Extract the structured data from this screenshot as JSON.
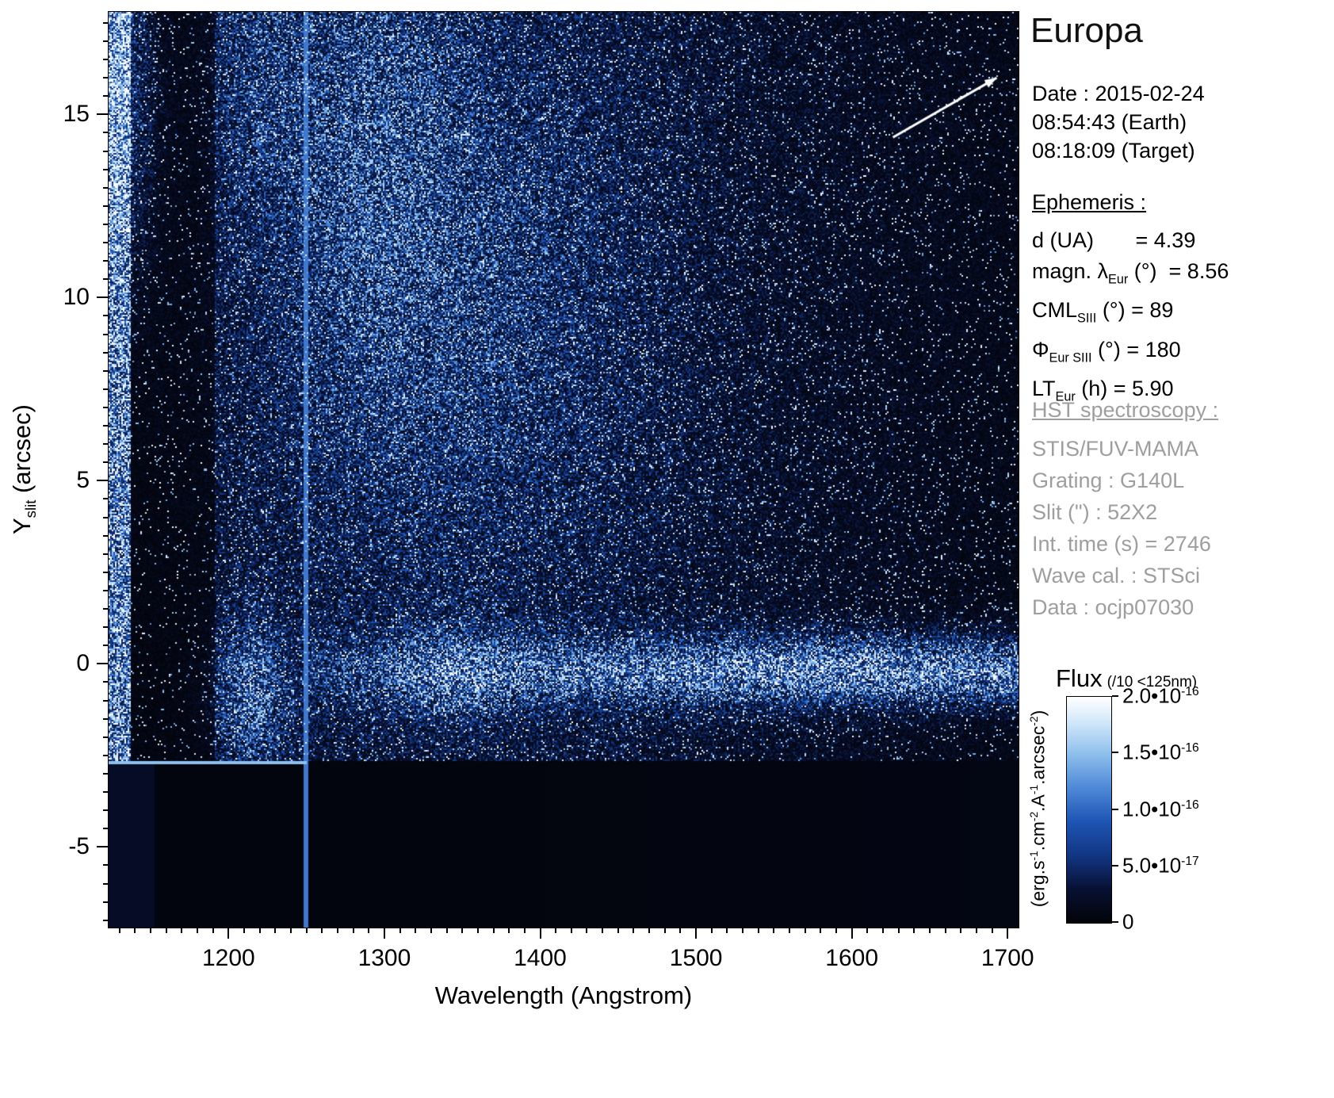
{
  "title": "Europa",
  "observation": {
    "date_label": "Date : 2015-02-24",
    "earth_time": "08:54:43 (Earth)",
    "target_time": "08:18:09 (Target)"
  },
  "ephemeris": {
    "heading": "Ephemeris :",
    "lines": [
      [
        {
          "t": "d (UA)       = 4.39"
        }
      ],
      [
        {
          "t": "magn. λ"
        },
        {
          "t": "Eur",
          "sub": true
        },
        {
          "t": " (°)  = 8.56"
        }
      ],
      [
        {
          "t": "CML"
        },
        {
          "t": "SIII",
          "sub": true
        },
        {
          "t": " (°) = 89"
        }
      ],
      [
        {
          "t": "Φ"
        },
        {
          "t": "Eur SIII",
          "sub": true
        },
        {
          "t": " (°) = 180"
        }
      ],
      [
        {
          "t": "LT"
        },
        {
          "t": "Eur",
          "sub": true
        },
        {
          "t": " (h) = 5.90"
        }
      ]
    ]
  },
  "hst": {
    "heading": "HST spectroscopy :",
    "lines": [
      "STIS/FUV-MAMA",
      "Grating : G140L",
      "Slit (\") : 52X2",
      "Int. time (s) = 2746",
      "Wave cal. : STSci",
      "Data : ocjp07030"
    ]
  },
  "chart_data": {
    "type": "heatmap",
    "title": "Europa",
    "xlabel": "Wavelength (Angstrom)",
    "ylabel_segments": [
      {
        "t": "Y"
      },
      {
        "t": "slit",
        "sub": true
      },
      {
        "t": " (arcsec)"
      }
    ],
    "xlim": [
      1123,
      1707
    ],
    "ylim": [
      -7.2,
      17.8
    ],
    "x_major_ticks": [
      1200,
      1300,
      1400,
      1500,
      1600,
      1700
    ],
    "x_minor_step": 10,
    "y_major_ticks": [
      -5,
      0,
      5,
      10,
      15
    ],
    "y_minor_step": 0.5,
    "grid": false,
    "legend": "none",
    "colorbar": {
      "title": "Flux",
      "subtitle": "(/10 <125nm)",
      "min": 0,
      "max": 2e-16,
      "tick_labels": [
        [
          {
            "t": "2.0•10"
          },
          {
            "t": "-16",
            "sup": true
          }
        ],
        [
          {
            "t": "1.5•10"
          },
          {
            "t": "-16",
            "sup": true
          }
        ],
        [
          {
            "t": "1.0•10"
          },
          {
            "t": "-16",
            "sup": true
          }
        ],
        [
          {
            "t": "5.0•10"
          },
          {
            "t": "-17",
            "sup": true
          }
        ],
        [
          {
            "t": "0"
          }
        ]
      ],
      "unit_segments": [
        {
          "t": "(erg.s"
        },
        {
          "t": "-1",
          "sup": true
        },
        {
          "t": ".cm"
        },
        {
          "t": "-2",
          "sup": true
        },
        {
          "t": ".A"
        },
        {
          "t": "-1",
          "sup": true
        },
        {
          "t": ".arcsec"
        },
        {
          "t": "-2",
          "sup": true
        },
        {
          "t": ")"
        }
      ]
    },
    "colormap": [
      [
        0,
        "#020308"
      ],
      [
        0.15,
        "#081134"
      ],
      [
        0.3,
        "#123684"
      ],
      [
        0.45,
        "#1f55b4"
      ],
      [
        0.6,
        "#4f8ad8"
      ],
      [
        0.75,
        "#8fc0ec"
      ],
      [
        0.88,
        "#cfe6fa"
      ],
      [
        1,
        "#ffffff"
      ]
    ],
    "annotations": {
      "arrow": {
        "from": [
          0.862,
          0.137
        ],
        "to": [
          0.976,
          0.072
        ],
        "color": "#ffffff"
      }
    },
    "image_model": {
      "seed": 11,
      "noise_floor_y": -2.65,
      "background": {
        "smooth_left": {
          "wl": [
            1123,
            1152
          ],
          "v": 0.1
        },
        "smooth_main_v": 0.022,
        "boundary_line": {
          "wl": [
            1123,
            1250
          ],
          "v": 0.75
        }
      },
      "regions": [
        {
          "name": "left-bright-edge",
          "wl": [
            1123,
            1137
          ],
          "base": 0.78
        },
        {
          "name": "dark-absorption-band",
          "wl": [
            1137,
            1191
          ],
          "base": 0.05
        },
        {
          "name": "lyman-alpha-band",
          "wl": [
            1191,
            1245
          ],
          "base": 0.2
        },
        {
          "name": "main-continuum",
          "wl": [
            1245,
            1707
          ],
          "base": 0.21
        }
      ],
      "right_fade": {
        "from": 1450,
        "to": 1707,
        "drop": 0.12
      },
      "vline": {
        "wl": [
          1248.5,
          1251.5
        ],
        "v": 0.55
      },
      "blobs": [
        {
          "cx": 1129,
          "cy": 16,
          "sx": 16,
          "sy": 3.5,
          "amp": 0.4
        },
        {
          "cx": 1216,
          "cy": -0.8,
          "sx": 16,
          "sy": 1.4,
          "amp": 0.42
        },
        {
          "cx": 1218,
          "cy": 17,
          "sx": 20,
          "sy": 3,
          "amp": 0.18
        },
        {
          "cx": 1290,
          "cy": 15,
          "sx": 40,
          "sy": 4,
          "amp": 0.2
        },
        {
          "cx": 1340,
          "cy": 10,
          "sx": 85,
          "sy": 5.5,
          "amp": 0.24
        },
        {
          "cx": 1345,
          "cy": -0.3,
          "sx": 32,
          "sy": 0.9,
          "amp": 0.26
        }
      ],
      "target_band": {
        "y": -0.2,
        "sy": 0.6,
        "amp0": 0.2,
        "amp1": 0.68,
        "ramp": [
          1300,
          1580
        ],
        "min_wl": 1250
      },
      "speckle": {
        "p0": 0.018,
        "k": 0.24
      }
    }
  }
}
